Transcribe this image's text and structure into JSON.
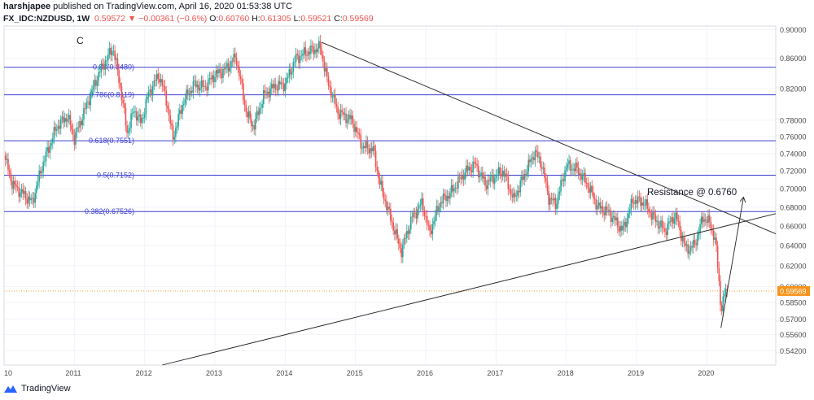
{
  "header": {
    "publisher": "harshjapee",
    "published_text": "published on TradingView.com, April 16, 2020 01:53:38 UTC",
    "symbol": "FX_IDC:NZDUSD, 1W",
    "last": "0.59572",
    "change": "−0.00361 (−0.6%)",
    "o_label": "O:",
    "o": "0.60760",
    "h_label": "H:",
    "h": "0.61305",
    "l_label": "L:",
    "l": "0.59521",
    "c_label": "C:",
    "c": "0.59569"
  },
  "footer": {
    "brand": "TradingView"
  },
  "colors": {
    "up": "#26a69a",
    "down": "#ef5350",
    "fib": "#3b3bd4",
    "trend": "#222222",
    "price_tag": "#f7931a"
  },
  "chart_data": {
    "type": "candlestick",
    "annotation_wave": "C",
    "annotation_resistance": "Resistance @ 0.6760",
    "price_tag": "0.59569",
    "yscale": "log",
    "ylim": [
      0.53,
      0.905
    ],
    "xlim": [
      2010.0,
      2020.98
    ],
    "y_ticks": [
      "0.90000",
      "0.86000",
      "0.82000",
      "0.78000",
      "0.76000",
      "0.74000",
      "0.72000",
      "0.70000",
      "0.68000",
      "0.66000",
      "0.64000",
      "0.62000",
      "0.60000",
      "0.58500",
      "0.57000",
      "0.55600",
      "0.54200"
    ],
    "x_ticks": [
      "10",
      "2011",
      "2012",
      "2013",
      "2014",
      "2015",
      "2016",
      "2017",
      "2018",
      "2019",
      "2020"
    ],
    "fib_levels": [
      {
        "label": "0.88(0.8480)",
        "value": 0.848
      },
      {
        "label": "0.786(0.8119)",
        "value": 0.8119
      },
      {
        "label": "0.618(0.7551)",
        "value": 0.7551
      },
      {
        "label": "0.5(0.7152)",
        "value": 0.7152
      },
      {
        "label": "0.382(0.67526)",
        "value": 0.67526
      }
    ],
    "trendlines": [
      {
        "from": [
          2014.52,
          0.882
        ],
        "to": [
          2020.98,
          0.652
        ]
      },
      {
        "from": [
          2012.25,
          0.53
        ],
        "to": [
          2020.98,
          0.673
        ]
      },
      {
        "from": [
          2020.2,
          0.562
        ],
        "to": [
          2020.52,
          0.69
        ],
        "arrow": true
      }
    ],
    "price_path": [
      [
        2010.0,
        0.738
      ],
      [
        2010.12,
        0.705
      ],
      [
        2010.4,
        0.685
      ],
      [
        2010.55,
        0.728
      ],
      [
        2010.75,
        0.772
      ],
      [
        2010.9,
        0.785
      ],
      [
        2011.0,
        0.758
      ],
      [
        2011.2,
        0.805
      ],
      [
        2011.35,
        0.84
      ],
      [
        2011.55,
        0.875
      ],
      [
        2011.65,
        0.825
      ],
      [
        2011.75,
        0.765
      ],
      [
        2011.85,
        0.793
      ],
      [
        2011.95,
        0.776
      ],
      [
        2012.05,
        0.812
      ],
      [
        2012.2,
        0.838
      ],
      [
        2012.3,
        0.81
      ],
      [
        2012.4,
        0.758
      ],
      [
        2012.55,
        0.803
      ],
      [
        2012.7,
        0.825
      ],
      [
        2012.85,
        0.822
      ],
      [
        2013.0,
        0.838
      ],
      [
        2013.15,
        0.845
      ],
      [
        2013.3,
        0.862
      ],
      [
        2013.45,
        0.788
      ],
      [
        2013.55,
        0.772
      ],
      [
        2013.7,
        0.812
      ],
      [
        2013.85,
        0.823
      ],
      [
        2014.0,
        0.826
      ],
      [
        2014.15,
        0.86
      ],
      [
        2014.3,
        0.868
      ],
      [
        2014.5,
        0.875
      ],
      [
        2014.6,
        0.83
      ],
      [
        2014.75,
        0.79
      ],
      [
        2014.95,
        0.78
      ],
      [
        2015.1,
        0.748
      ],
      [
        2015.25,
        0.745
      ],
      [
        2015.35,
        0.705
      ],
      [
        2015.5,
        0.668
      ],
      [
        2015.65,
        0.634
      ],
      [
        2015.8,
        0.668
      ],
      [
        2015.95,
        0.685
      ],
      [
        2016.05,
        0.652
      ],
      [
        2016.2,
        0.685
      ],
      [
        2016.35,
        0.695
      ],
      [
        2016.55,
        0.718
      ],
      [
        2016.7,
        0.728
      ],
      [
        2016.85,
        0.705
      ],
      [
        2017.0,
        0.715
      ],
      [
        2017.1,
        0.72
      ],
      [
        2017.25,
        0.688
      ],
      [
        2017.4,
        0.715
      ],
      [
        2017.55,
        0.742
      ],
      [
        2017.65,
        0.728
      ],
      [
        2017.75,
        0.69
      ],
      [
        2017.85,
        0.683
      ],
      [
        2018.0,
        0.726
      ],
      [
        2018.15,
        0.722
      ],
      [
        2018.3,
        0.705
      ],
      [
        2018.45,
        0.68
      ],
      [
        2018.6,
        0.675
      ],
      [
        2018.8,
        0.655
      ],
      [
        2018.95,
        0.688
      ],
      [
        2019.1,
        0.685
      ],
      [
        2019.25,
        0.668
      ],
      [
        2019.4,
        0.655
      ],
      [
        2019.55,
        0.672
      ],
      [
        2019.7,
        0.636
      ],
      [
        2019.82,
        0.64
      ],
      [
        2019.95,
        0.67
      ],
      [
        2020.05,
        0.662
      ],
      [
        2020.12,
        0.645
      ],
      [
        2020.17,
        0.608
      ],
      [
        2020.2,
        0.578
      ],
      [
        2020.23,
        0.585
      ],
      [
        2020.27,
        0.598
      ],
      [
        2020.29,
        0.5957
      ]
    ]
  }
}
